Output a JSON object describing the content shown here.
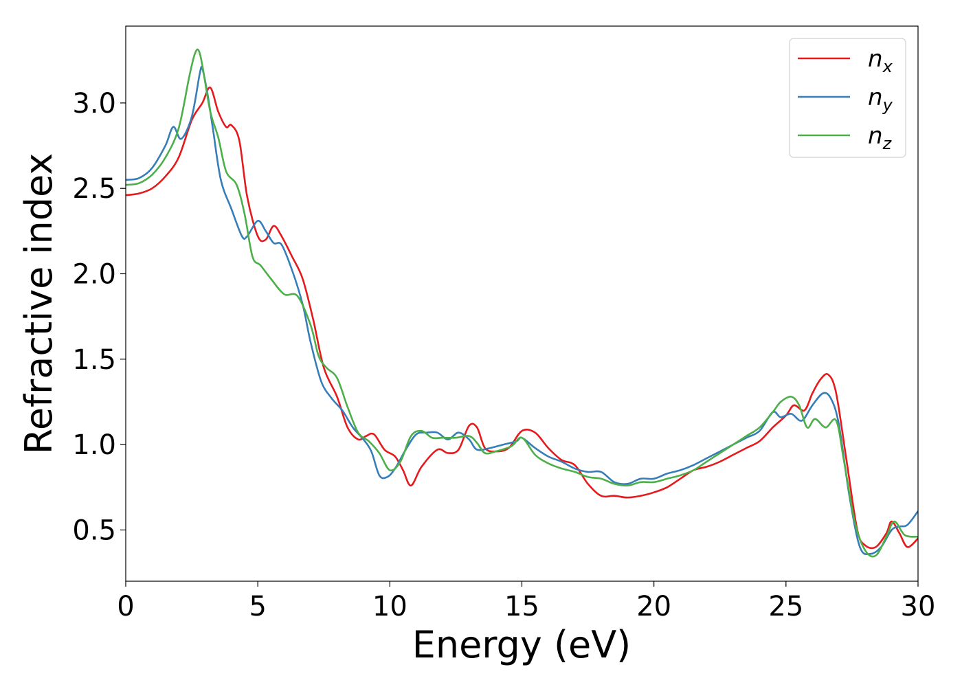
{
  "chart_data": {
    "type": "line",
    "xlabel": "Energy (eV)",
    "ylabel": "Refractive index",
    "xlim": [
      0,
      30
    ],
    "ylim": [
      0.2,
      3.45
    ],
    "x_ticks": [
      "0",
      "5",
      "10",
      "15",
      "20",
      "25",
      "30"
    ],
    "y_ticks": [
      "0.5",
      "1.0",
      "1.5",
      "2.0",
      "2.5",
      "3.0"
    ],
    "grid": false,
    "legend_position": "top-right",
    "series": [
      {
        "name": "n_x",
        "label_base": "n",
        "label_sub": "x",
        "color": "#e41a1c",
        "points": [
          [
            0,
            2.46
          ],
          [
            0.5,
            2.47
          ],
          [
            1,
            2.5
          ],
          [
            1.5,
            2.57
          ],
          [
            2,
            2.68
          ],
          [
            2.5,
            2.9
          ],
          [
            2.9,
            3.0
          ],
          [
            3.2,
            3.09
          ],
          [
            3.5,
            2.95
          ],
          [
            3.8,
            2.86
          ],
          [
            4.0,
            2.87
          ],
          [
            4.3,
            2.78
          ],
          [
            4.6,
            2.45
          ],
          [
            5.0,
            2.22
          ],
          [
            5.3,
            2.2
          ],
          [
            5.6,
            2.28
          ],
          [
            5.9,
            2.22
          ],
          [
            6.3,
            2.1
          ],
          [
            6.7,
            1.97
          ],
          [
            7.1,
            1.73
          ],
          [
            7.5,
            1.45
          ],
          [
            8.0,
            1.28
          ],
          [
            8.4,
            1.1
          ],
          [
            8.8,
            1.03
          ],
          [
            9.1,
            1.05
          ],
          [
            9.4,
            1.06
          ],
          [
            9.8,
            0.97
          ],
          [
            10.2,
            0.93
          ],
          [
            10.5,
            0.85
          ],
          [
            10.8,
            0.76
          ],
          [
            11.2,
            0.87
          ],
          [
            11.8,
            0.97
          ],
          [
            12.2,
            0.95
          ],
          [
            12.6,
            0.97
          ],
          [
            13.0,
            1.11
          ],
          [
            13.3,
            1.1
          ],
          [
            13.6,
            0.98
          ],
          [
            14.0,
            0.96
          ],
          [
            14.5,
            0.98
          ],
          [
            15.0,
            1.08
          ],
          [
            15.5,
            1.07
          ],
          [
            16.0,
            0.98
          ],
          [
            16.5,
            0.91
          ],
          [
            17.0,
            0.88
          ],
          [
            17.5,
            0.77
          ],
          [
            18.0,
            0.7
          ],
          [
            18.5,
            0.7
          ],
          [
            19.0,
            0.69
          ],
          [
            19.5,
            0.7
          ],
          [
            20.0,
            0.72
          ],
          [
            20.5,
            0.75
          ],
          [
            21.0,
            0.8
          ],
          [
            21.5,
            0.85
          ],
          [
            22.0,
            0.87
          ],
          [
            22.5,
            0.9
          ],
          [
            23.0,
            0.94
          ],
          [
            23.5,
            0.98
          ],
          [
            24.0,
            1.02
          ],
          [
            24.5,
            1.1
          ],
          [
            25.0,
            1.17
          ],
          [
            25.3,
            1.23
          ],
          [
            25.7,
            1.2
          ],
          [
            26.0,
            1.3
          ],
          [
            26.3,
            1.38
          ],
          [
            26.6,
            1.41
          ],
          [
            26.9,
            1.3
          ],
          [
            27.3,
            0.9
          ],
          [
            27.7,
            0.5
          ],
          [
            28.0,
            0.41
          ],
          [
            28.4,
            0.4
          ],
          [
            28.8,
            0.48
          ],
          [
            29.0,
            0.55
          ],
          [
            29.3,
            0.48
          ],
          [
            29.6,
            0.4
          ],
          [
            30.0,
            0.45
          ]
        ]
      },
      {
        "name": "n_y",
        "label_base": "n",
        "label_sub": "y",
        "color": "#377eb8",
        "points": [
          [
            0,
            2.55
          ],
          [
            0.5,
            2.56
          ],
          [
            1,
            2.62
          ],
          [
            1.5,
            2.75
          ],
          [
            1.8,
            2.86
          ],
          [
            2.1,
            2.79
          ],
          [
            2.5,
            2.92
          ],
          [
            2.8,
            3.17
          ],
          [
            2.9,
            3.2
          ],
          [
            3.1,
            3.05
          ],
          [
            3.3,
            2.85
          ],
          [
            3.6,
            2.55
          ],
          [
            4.0,
            2.38
          ],
          [
            4.4,
            2.22
          ],
          [
            4.6,
            2.22
          ],
          [
            5.0,
            2.31
          ],
          [
            5.3,
            2.25
          ],
          [
            5.6,
            2.18
          ],
          [
            5.9,
            2.17
          ],
          [
            6.3,
            2.02
          ],
          [
            6.7,
            1.82
          ],
          [
            7.0,
            1.6
          ],
          [
            7.4,
            1.37
          ],
          [
            7.8,
            1.27
          ],
          [
            8.2,
            1.2
          ],
          [
            8.6,
            1.1
          ],
          [
            9.0,
            1.03
          ],
          [
            9.3,
            0.96
          ],
          [
            9.6,
            0.82
          ],
          [
            9.9,
            0.81
          ],
          [
            10.2,
            0.86
          ],
          [
            10.6,
            0.97
          ],
          [
            11.0,
            1.06
          ],
          [
            11.4,
            1.07
          ],
          [
            11.8,
            1.07
          ],
          [
            12.2,
            1.03
          ],
          [
            12.6,
            1.07
          ],
          [
            13.0,
            1.03
          ],
          [
            13.3,
            0.97
          ],
          [
            13.8,
            0.98
          ],
          [
            14.3,
            1.0
          ],
          [
            14.8,
            1.02
          ],
          [
            15.0,
            1.04
          ],
          [
            15.5,
            0.98
          ],
          [
            16.0,
            0.93
          ],
          [
            16.5,
            0.9
          ],
          [
            17.0,
            0.86
          ],
          [
            17.5,
            0.84
          ],
          [
            18.0,
            0.84
          ],
          [
            18.5,
            0.78
          ],
          [
            19.0,
            0.77
          ],
          [
            19.5,
            0.8
          ],
          [
            20.0,
            0.8
          ],
          [
            20.5,
            0.83
          ],
          [
            21.0,
            0.85
          ],
          [
            21.5,
            0.88
          ],
          [
            22.0,
            0.92
          ],
          [
            22.5,
            0.96
          ],
          [
            23.0,
            1.0
          ],
          [
            23.5,
            1.04
          ],
          [
            24.0,
            1.08
          ],
          [
            24.5,
            1.19
          ],
          [
            24.8,
            1.16
          ],
          [
            25.2,
            1.18
          ],
          [
            25.6,
            1.14
          ],
          [
            26.0,
            1.23
          ],
          [
            26.4,
            1.3
          ],
          [
            26.7,
            1.27
          ],
          [
            27.0,
            1.12
          ],
          [
            27.4,
            0.7
          ],
          [
            27.8,
            0.4
          ],
          [
            28.2,
            0.36
          ],
          [
            28.6,
            0.4
          ],
          [
            29.0,
            0.5
          ],
          [
            29.3,
            0.52
          ],
          [
            29.6,
            0.53
          ],
          [
            30.0,
            0.61
          ]
        ]
      },
      {
        "name": "n_z",
        "label_base": "n",
        "label_sub": "z",
        "color": "#4daf4a",
        "points": [
          [
            0,
            2.52
          ],
          [
            0.5,
            2.53
          ],
          [
            1,
            2.58
          ],
          [
            1.5,
            2.68
          ],
          [
            2,
            2.85
          ],
          [
            2.4,
            3.15
          ],
          [
            2.6,
            3.28
          ],
          [
            2.75,
            3.31
          ],
          [
            2.9,
            3.22
          ],
          [
            3.2,
            2.95
          ],
          [
            3.5,
            2.8
          ],
          [
            3.8,
            2.6
          ],
          [
            4.2,
            2.52
          ],
          [
            4.5,
            2.35
          ],
          [
            4.8,
            2.1
          ],
          [
            5.1,
            2.05
          ],
          [
            5.5,
            1.97
          ],
          [
            6.0,
            1.88
          ],
          [
            6.5,
            1.87
          ],
          [
            7.0,
            1.7
          ],
          [
            7.3,
            1.52
          ],
          [
            7.6,
            1.45
          ],
          [
            8.0,
            1.39
          ],
          [
            8.4,
            1.22
          ],
          [
            8.8,
            1.07
          ],
          [
            9.2,
            1.02
          ],
          [
            9.6,
            0.95
          ],
          [
            10.0,
            0.85
          ],
          [
            10.4,
            0.9
          ],
          [
            10.8,
            1.05
          ],
          [
            11.2,
            1.08
          ],
          [
            11.6,
            1.04
          ],
          [
            12.0,
            1.04
          ],
          [
            12.5,
            1.04
          ],
          [
            13.0,
            1.05
          ],
          [
            13.3,
            1.01
          ],
          [
            13.6,
            0.95
          ],
          [
            14.0,
            0.96
          ],
          [
            14.6,
            0.99
          ],
          [
            15.0,
            1.04
          ],
          [
            15.5,
            0.94
          ],
          [
            16.0,
            0.89
          ],
          [
            16.5,
            0.86
          ],
          [
            17.0,
            0.84
          ],
          [
            17.5,
            0.81
          ],
          [
            18.0,
            0.8
          ],
          [
            18.5,
            0.77
          ],
          [
            19.0,
            0.76
          ],
          [
            19.5,
            0.78
          ],
          [
            20.0,
            0.78
          ],
          [
            20.5,
            0.8
          ],
          [
            21.0,
            0.82
          ],
          [
            21.5,
            0.85
          ],
          [
            22.0,
            0.9
          ],
          [
            22.5,
            0.95
          ],
          [
            23.0,
            1.0
          ],
          [
            23.5,
            1.05
          ],
          [
            24.0,
            1.1
          ],
          [
            24.5,
            1.19
          ],
          [
            24.8,
            1.25
          ],
          [
            25.2,
            1.28
          ],
          [
            25.5,
            1.23
          ],
          [
            25.8,
            1.1
          ],
          [
            26.1,
            1.15
          ],
          [
            26.5,
            1.1
          ],
          [
            26.9,
            1.14
          ],
          [
            27.2,
            0.9
          ],
          [
            27.6,
            0.55
          ],
          [
            28.0,
            0.38
          ],
          [
            28.4,
            0.35
          ],
          [
            28.8,
            0.46
          ],
          [
            29.1,
            0.55
          ],
          [
            29.5,
            0.47
          ],
          [
            30.0,
            0.46
          ]
        ]
      }
    ]
  }
}
